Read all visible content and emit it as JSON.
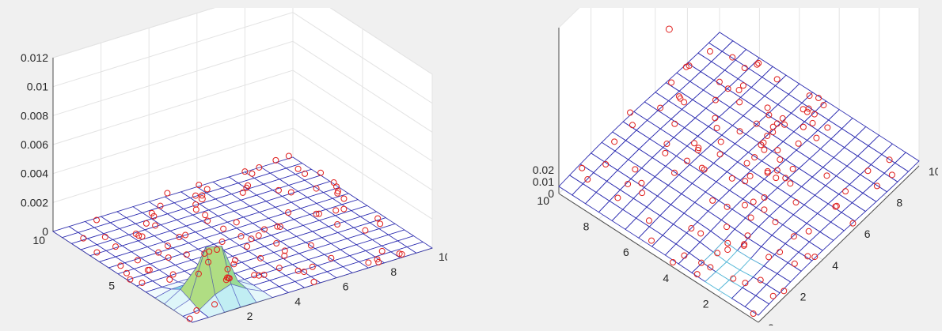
{
  "chart_data": [
    {
      "type": "surface",
      "view": "left",
      "axes": {
        "xlim": [
          0,
          10
        ],
        "ylim": [
          0,
          10
        ],
        "zlim": [
          0,
          0.012
        ],
        "x_ticks": [
          "0",
          "2",
          "4",
          "6",
          "8",
          "10"
        ],
        "y_ticks": [
          "0",
          "5",
          "10"
        ],
        "z_ticks": [
          "0",
          "0.002",
          "0.004",
          "0.006",
          "0.008",
          "0.01",
          "0.012"
        ],
        "grid": true
      },
      "surface": {
        "grid_n": 15,
        "mesh_color": "#2b2bb0",
        "peak": {
          "x": 1.6,
          "y": 1.4,
          "z": 0.0045,
          "color": "#f5e050"
        },
        "secondary_bumps": [
          {
            "x": 2.3,
            "y": 1.0,
            "z": 0.0013
          },
          {
            "x": 1.0,
            "y": 2.2,
            "z": 0.001
          }
        ]
      },
      "scatter": {
        "marker": "o",
        "color": "#e0201e",
        "outlier": {
          "x": 1.8,
          "y": 2.4,
          "z": 0.0061
        }
      }
    },
    {
      "type": "surface",
      "view": "right",
      "axes": {
        "xlim": [
          0,
          10
        ],
        "ylim": [
          0,
          10
        ],
        "zlim": [
          0,
          0.02
        ],
        "x_ticks": [
          "0",
          "2",
          "4",
          "6",
          "8",
          "10"
        ],
        "y_ticks": [
          "0",
          "2",
          "4",
          "6",
          "8",
          "10"
        ],
        "z_ticks": [
          "0",
          "0.01",
          "0.02"
        ],
        "grid": true
      },
      "surface": {
        "grid_n": 15,
        "mesh_color": "#2b2bb0"
      },
      "scatter": {
        "marker": "o",
        "color": "#e0201e",
        "outlier": {
          "x": 9.2,
          "y": 9.5,
          "z": 0.008
        }
      }
    }
  ]
}
